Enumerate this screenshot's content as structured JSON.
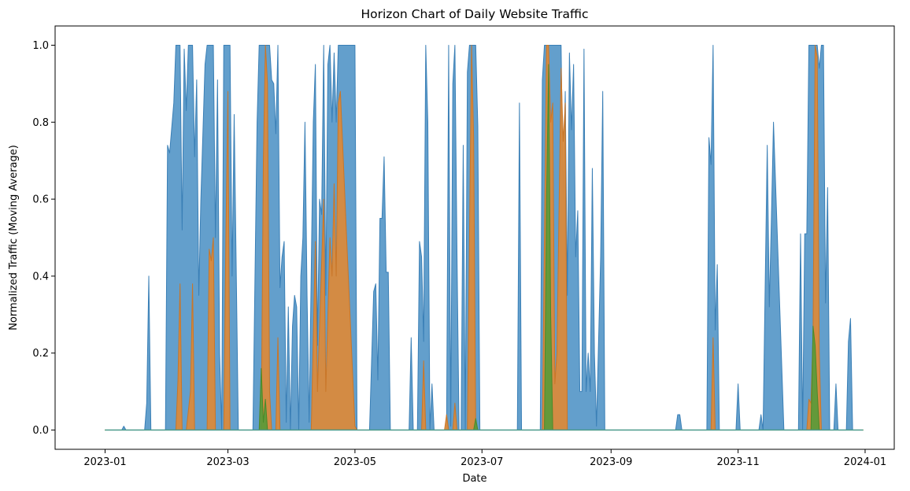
{
  "chart_data": {
    "type": "area",
    "title": "Horizon Chart of Daily Website Traffic",
    "xlabel": "Date",
    "ylabel": "Normalized Traffic (Moving Average)",
    "x_range": [
      "2022-12-08",
      "2024-01-15"
    ],
    "ylim": [
      -0.05,
      1.05
    ],
    "x_ticks": [
      "2023-01",
      "2023-03",
      "2023-05",
      "2023-07",
      "2023-09",
      "2023-11",
      "2024-01"
    ],
    "y_ticks": [
      0.0,
      0.2,
      0.4,
      0.6,
      0.8,
      1.0
    ],
    "grid": false,
    "legend": "none",
    "series": [
      {
        "band": 1,
        "color": "#5b9ac9",
        "edge": "#3a7fb6",
        "points": [
          [
            "2023-01-01",
            0
          ],
          [
            "2023-01-09",
            0
          ],
          [
            "2023-01-10",
            0.01
          ],
          [
            "2023-01-11",
            0
          ],
          [
            "2023-01-20",
            0
          ],
          [
            "2023-01-21",
            0.07
          ],
          [
            "2023-01-22",
            0.4
          ],
          [
            "2023-01-23",
            0
          ],
          [
            "2023-01-30",
            0
          ],
          [
            "2023-01-31",
            0.74
          ],
          [
            "2023-02-01",
            0.72
          ],
          [
            "2023-02-03",
            0.85
          ],
          [
            "2023-02-04",
            1.0
          ],
          [
            "2023-02-06",
            1.0
          ],
          [
            "2023-02-07",
            0.52
          ],
          [
            "2023-02-08",
            0.99
          ],
          [
            "2023-02-09",
            0.83
          ],
          [
            "2023-02-10",
            1.0
          ],
          [
            "2023-02-12",
            1.0
          ],
          [
            "2023-02-13",
            0.71
          ],
          [
            "2023-02-14",
            0.91
          ],
          [
            "2023-02-15",
            0.35
          ],
          [
            "2023-02-16",
            0.6
          ],
          [
            "2023-02-18",
            0.95
          ],
          [
            "2023-02-19",
            1.0
          ],
          [
            "2023-02-22",
            1.0
          ],
          [
            "2023-02-23",
            0.5
          ],
          [
            "2023-02-24",
            0.91
          ],
          [
            "2023-02-25",
            0.2
          ],
          [
            "2023-02-26",
            0
          ],
          [
            "2023-02-27",
            1.0
          ],
          [
            "2023-03-02",
            1.0
          ],
          [
            "2023-03-03",
            0.4
          ],
          [
            "2023-03-04",
            0.82
          ],
          [
            "2023-03-06",
            0
          ],
          [
            "2023-03-13",
            0
          ],
          [
            "2023-03-15",
            0.8
          ],
          [
            "2023-03-16",
            1.0
          ],
          [
            "2023-03-21",
            1.0
          ],
          [
            "2023-03-22",
            0.91
          ],
          [
            "2023-03-23",
            0.9
          ],
          [
            "2023-03-24",
            0.77
          ],
          [
            "2023-03-25",
            1.0
          ],
          [
            "2023-03-26",
            0.37
          ],
          [
            "2023-03-27",
            0.45
          ],
          [
            "2023-03-28",
            0.49
          ],
          [
            "2023-03-29",
            0.02
          ],
          [
            "2023-03-30",
            0.32
          ],
          [
            "2023-03-31",
            0
          ],
          [
            "2023-04-01",
            0.27
          ],
          [
            "2023-04-02",
            0.35
          ],
          [
            "2023-04-03",
            0.32
          ],
          [
            "2023-04-04",
            0
          ],
          [
            "2023-04-05",
            0.4
          ],
          [
            "2023-04-06",
            0.5
          ],
          [
            "2023-04-07",
            0.8
          ],
          [
            "2023-04-08",
            0.35
          ],
          [
            "2023-04-09",
            0.02
          ],
          [
            "2023-04-11",
            0.8
          ],
          [
            "2023-04-12",
            0.95
          ],
          [
            "2023-04-13",
            0.22
          ],
          [
            "2023-04-14",
            0.6
          ],
          [
            "2023-04-15",
            0.56
          ],
          [
            "2023-04-16",
            1.0
          ],
          [
            "2023-04-17",
            0.35
          ],
          [
            "2023-04-18",
            0.95
          ],
          [
            "2023-04-19",
            1.0
          ],
          [
            "2023-04-20",
            0.8
          ],
          [
            "2023-04-21",
            0.98
          ],
          [
            "2023-04-22",
            0.8
          ],
          [
            "2023-04-23",
            1.0
          ],
          [
            "2023-05-01",
            1.0
          ],
          [
            "2023-05-02",
            0
          ],
          [
            "2023-05-08",
            0
          ],
          [
            "2023-05-10",
            0.36
          ],
          [
            "2023-05-11",
            0.38
          ],
          [
            "2023-05-12",
            0.13
          ],
          [
            "2023-05-13",
            0.55
          ],
          [
            "2023-05-14",
            0.55
          ],
          [
            "2023-05-15",
            0.71
          ],
          [
            "2023-05-16",
            0.41
          ],
          [
            "2023-05-17",
            0.41
          ],
          [
            "2023-05-18",
            0
          ],
          [
            "2023-05-27",
            0
          ],
          [
            "2023-05-28",
            0.24
          ],
          [
            "2023-05-29",
            0
          ],
          [
            "2023-05-31",
            0
          ],
          [
            "2023-06-01",
            0.49
          ],
          [
            "2023-06-02",
            0.45
          ],
          [
            "2023-06-03",
            0.23
          ],
          [
            "2023-06-04",
            1.0
          ],
          [
            "2023-06-05",
            0.8
          ],
          [
            "2023-06-06",
            0
          ],
          [
            "2023-06-07",
            0.12
          ],
          [
            "2023-06-08",
            0
          ],
          [
            "2023-06-14",
            0
          ],
          [
            "2023-06-15",
            1.0
          ],
          [
            "2023-06-16",
            0.01
          ],
          [
            "2023-06-17",
            0.9
          ],
          [
            "2023-06-18",
            1.0
          ],
          [
            "2023-06-19",
            0.46
          ],
          [
            "2023-06-20",
            0
          ],
          [
            "2023-06-21",
            0
          ],
          [
            "2023-06-22",
            0.74
          ],
          [
            "2023-06-23",
            0
          ],
          [
            "2023-06-24",
            0.93
          ],
          [
            "2023-06-25",
            1.0
          ],
          [
            "2023-06-28",
            1.0
          ],
          [
            "2023-06-29",
            0.79
          ],
          [
            "2023-06-30",
            0
          ],
          [
            "2023-07-18",
            0
          ],
          [
            "2023-07-19",
            0.85
          ],
          [
            "2023-07-20",
            0
          ],
          [
            "2023-07-29",
            0
          ],
          [
            "2023-07-30",
            0.91
          ],
          [
            "2023-07-31",
            1.0
          ],
          [
            "2023-08-08",
            1.0
          ],
          [
            "2023-08-09",
            0.6
          ],
          [
            "2023-08-10",
            0.88
          ],
          [
            "2023-08-11",
            0.35
          ],
          [
            "2023-08-12",
            0.98
          ],
          [
            "2023-08-13",
            0.78
          ],
          [
            "2023-08-14",
            0.95
          ],
          [
            "2023-08-15",
            0.45
          ],
          [
            "2023-08-16",
            0.57
          ],
          [
            "2023-08-17",
            0.1
          ],
          [
            "2023-08-18",
            0.1
          ],
          [
            "2023-08-19",
            0.99
          ],
          [
            "2023-08-20",
            0.1
          ],
          [
            "2023-08-21",
            0.2
          ],
          [
            "2023-08-22",
            0.1
          ],
          [
            "2023-08-23",
            0.68
          ],
          [
            "2023-08-24",
            0.2
          ],
          [
            "2023-08-25",
            0.01
          ],
          [
            "2023-08-27",
            0.45
          ],
          [
            "2023-08-28",
            0.88
          ],
          [
            "2023-08-29",
            0
          ],
          [
            "2023-10-02",
            0
          ],
          [
            "2023-10-03",
            0.04
          ],
          [
            "2023-10-04",
            0.04
          ],
          [
            "2023-10-05",
            0
          ],
          [
            "2023-10-17",
            0
          ],
          [
            "2023-10-18",
            0.76
          ],
          [
            "2023-10-19",
            0.69
          ],
          [
            "2023-10-20",
            1.0
          ],
          [
            "2023-10-21",
            0.26
          ],
          [
            "2023-10-22",
            0.43
          ],
          [
            "2023-10-23",
            0
          ],
          [
            "2023-10-31",
            0
          ],
          [
            "2023-11-01",
            0.12
          ],
          [
            "2023-11-02",
            0
          ],
          [
            "2023-11-11",
            0
          ],
          [
            "2023-11-12",
            0.04
          ],
          [
            "2023-11-13",
            0
          ],
          [
            "2023-11-15",
            0.74
          ],
          [
            "2023-11-16",
            0.32
          ],
          [
            "2023-11-17",
            0.55
          ],
          [
            "2023-11-18",
            0.8
          ],
          [
            "2023-11-23",
            0
          ],
          [
            "2023-11-30",
            0
          ],
          [
            "2023-12-01",
            0.51
          ],
          [
            "2023-12-02",
            0
          ],
          [
            "2023-12-03",
            0.51
          ],
          [
            "2023-12-04",
            0.51
          ],
          [
            "2023-12-05",
            1.0
          ],
          [
            "2023-12-09",
            1.0
          ],
          [
            "2023-12-10",
            0.94
          ],
          [
            "2023-12-11",
            1.0
          ],
          [
            "2023-12-12",
            1.0
          ],
          [
            "2023-12-13",
            0.33
          ],
          [
            "2023-12-14",
            0.63
          ],
          [
            "2023-12-15",
            0
          ],
          [
            "2023-12-17",
            0
          ],
          [
            "2023-12-18",
            0.12
          ],
          [
            "2023-12-19",
            0
          ],
          [
            "2023-12-23",
            0
          ],
          [
            "2023-12-24",
            0.23
          ],
          [
            "2023-12-25",
            0.29
          ],
          [
            "2023-12-26",
            0
          ],
          [
            "2023-12-31",
            0
          ]
        ]
      },
      {
        "band": 2,
        "color": "#d98a3c",
        "edge": "#c97628",
        "points": [
          [
            "2023-01-01",
            0
          ],
          [
            "2023-02-04",
            0
          ],
          [
            "2023-02-05",
            0.13
          ],
          [
            "2023-02-06",
            0.38
          ],
          [
            "2023-02-07",
            0
          ],
          [
            "2023-02-09",
            0
          ],
          [
            "2023-02-10",
            0.05
          ],
          [
            "2023-02-11",
            0.1
          ],
          [
            "2023-02-12",
            0.38
          ],
          [
            "2023-02-13",
            0
          ],
          [
            "2023-02-19",
            0
          ],
          [
            "2023-02-20",
            0.47
          ],
          [
            "2023-02-21",
            0.44
          ],
          [
            "2023-02-22",
            0.5
          ],
          [
            "2023-02-23",
            0
          ],
          [
            "2023-02-27",
            0
          ],
          [
            "2023-02-28",
            0.5
          ],
          [
            "2023-03-01",
            0.88
          ],
          [
            "2023-03-02",
            0
          ],
          [
            "2023-03-17",
            0
          ],
          [
            "2023-03-18",
            0.7
          ],
          [
            "2023-03-19",
            1.0
          ],
          [
            "2023-03-20",
            0.9
          ],
          [
            "2023-03-21",
            0.1
          ],
          [
            "2023-03-22",
            0
          ],
          [
            "2023-03-24",
            0
          ],
          [
            "2023-03-25",
            0.24
          ],
          [
            "2023-03-26",
            0
          ],
          [
            "2023-04-10",
            0
          ],
          [
            "2023-04-12",
            0.49
          ],
          [
            "2023-04-13",
            0.1
          ],
          [
            "2023-04-16",
            0.6
          ],
          [
            "2023-04-17",
            0.1
          ],
          [
            "2023-04-19",
            0.5
          ],
          [
            "2023-04-20",
            0.4
          ],
          [
            "2023-04-21",
            0.64
          ],
          [
            "2023-04-22",
            0.4
          ],
          [
            "2023-04-23",
            0.85
          ],
          [
            "2023-04-24",
            0.88
          ],
          [
            "2023-04-27",
            0.5
          ],
          [
            "2023-05-01",
            0.01
          ],
          [
            "2023-05-02",
            0
          ],
          [
            "2023-06-02",
            0
          ],
          [
            "2023-06-03",
            0.18
          ],
          [
            "2023-06-04",
            0
          ],
          [
            "2023-06-13",
            0
          ],
          [
            "2023-06-14",
            0.04
          ],
          [
            "2023-06-15",
            0
          ],
          [
            "2023-06-17",
            0
          ],
          [
            "2023-06-18",
            0.07
          ],
          [
            "2023-06-19",
            0
          ],
          [
            "2023-06-24",
            0
          ],
          [
            "2023-06-25",
            0.5
          ],
          [
            "2023-06-26",
            1.0
          ],
          [
            "2023-06-27",
            0.76
          ],
          [
            "2023-06-28",
            0
          ],
          [
            "2023-07-30",
            0
          ],
          [
            "2023-08-01",
            1.0
          ],
          [
            "2023-08-02",
            1.0
          ],
          [
            "2023-08-03",
            0.8
          ],
          [
            "2023-08-04",
            0.85
          ],
          [
            "2023-08-05",
            0.12
          ],
          [
            "2023-08-06",
            0.2
          ],
          [
            "2023-08-08",
            0.94
          ],
          [
            "2023-08-09",
            0.75
          ],
          [
            "2023-08-10",
            0.85
          ],
          [
            "2023-08-11",
            0
          ],
          [
            "2023-10-19",
            0
          ],
          [
            "2023-10-20",
            0.24
          ],
          [
            "2023-10-21",
            0
          ],
          [
            "2023-12-04",
            0
          ],
          [
            "2023-12-05",
            0.08
          ],
          [
            "2023-12-06",
            0.07
          ],
          [
            "2023-12-07",
            0.25
          ],
          [
            "2023-12-08",
            1.0
          ],
          [
            "2023-12-09",
            0.97
          ],
          [
            "2023-12-10",
            0.2
          ],
          [
            "2023-12-11",
            0
          ],
          [
            "2023-12-31",
            0
          ]
        ]
      },
      {
        "band": 3,
        "color": "#5e9a3a",
        "edge": "#4a8a2a",
        "points": [
          [
            "2023-01-01",
            0
          ],
          [
            "2023-03-16",
            0
          ],
          [
            "2023-03-17",
            0.16
          ],
          [
            "2023-03-18",
            0.02
          ],
          [
            "2023-03-19",
            0.08
          ],
          [
            "2023-03-20",
            0
          ],
          [
            "2023-06-27",
            0
          ],
          [
            "2023-06-28",
            0.03
          ],
          [
            "2023-06-29",
            0
          ],
          [
            "2023-07-31",
            0
          ],
          [
            "2023-08-01",
            0.6
          ],
          [
            "2023-08-02",
            0.95
          ],
          [
            "2023-08-03",
            0.3
          ],
          [
            "2023-08-04",
            0
          ],
          [
            "2023-12-06",
            0
          ],
          [
            "2023-12-07",
            0.27
          ],
          [
            "2023-12-08",
            0.22
          ],
          [
            "2023-12-09",
            0.1
          ],
          [
            "2023-12-10",
            0
          ],
          [
            "2023-12-31",
            0
          ]
        ]
      }
    ]
  }
}
